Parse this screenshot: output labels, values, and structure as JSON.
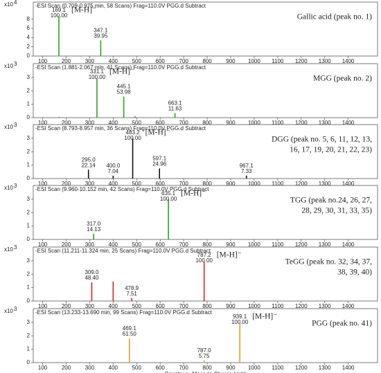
{
  "chart_data": [
    {
      "type": "stem",
      "header": "-ESI Scan (0.709-0.975 min, 58 Scans) Frag=110.0V PGG.d  Subtract",
      "y_multiplier": "x10",
      "y_exponent": "4",
      "compound": [
        "Gallic acid (peak no. 1)"
      ],
      "annotation": "[M-H]⁻",
      "color": "#22a822",
      "x": [
        169.1,
        347.1
      ],
      "x_labels": [
        "169.1",
        "347.1"
      ],
      "values": [
        8.6,
        3.4
      ],
      "rel_labels": [
        "100.00",
        "39.95"
      ],
      "xlim": [
        60,
        1525
      ],
      "xticks": [
        100,
        200,
        300,
        400,
        500,
        600,
        700,
        800,
        900,
        1000,
        1100,
        1200,
        1300,
        1400
      ],
      "ylim": [
        0,
        9.6
      ],
      "yticks": [
        0,
        2,
        4,
        6,
        8
      ]
    },
    {
      "type": "stem",
      "header": "-ESI Scan (1.881-2.067 min, 41 Scans) Frag=110.0V PGG.d  Subtract",
      "y_multiplier": "x10",
      "y_exponent": "3",
      "compound": [
        "MGG (peak no. 2)"
      ],
      "annotation": "[M-H]⁻",
      "color": "#22a822",
      "x": [
        169.0,
        331.1,
        445.1,
        493.0,
        663.1
      ],
      "x_labels": [
        null,
        "331.1",
        "445.1",
        null,
        "663.1"
      ],
      "values": [
        0.06,
        2.9,
        1.57,
        0.1,
        0.34
      ],
      "rel_labels": [
        null,
        "100.00",
        "53.98",
        null,
        "11.63"
      ],
      "xlim": [
        60,
        1525
      ],
      "xticks": [
        100,
        200,
        300,
        400,
        500,
        600,
        700,
        800,
        900,
        1000,
        1100,
        1200,
        1300,
        1400
      ],
      "ylim": [
        0,
        3.3
      ],
      "yticks": [
        0,
        1,
        2,
        3
      ]
    },
    {
      "type": "stem",
      "header": "-ESI Scan (8.793-8.957 min, 36 Scans) Frag=110.0V PGG.d  Subtract",
      "y_multiplier": "x10",
      "y_exponent": "3",
      "compound": [
        "DGG (peak no. 5, 6, 11, 12, 13,",
        "16, 17,  19, 20, 21, 22, 23)"
      ],
      "annotation": "[M-H]⁻",
      "color": "#111111",
      "x": [
        295.0,
        400.0,
        483.2,
        597.1,
        967.1
      ],
      "x_labels": [
        "295.0",
        "400.0",
        "483.2",
        "597.1",
        "967.1"
      ],
      "values": [
        0.66,
        0.21,
        3.0,
        0.75,
        0.22
      ],
      "rel_labels": [
        "22.14",
        "7.04",
        "100.00",
        "24.96",
        "7.33"
      ],
      "xlim": [
        60,
        1525
      ],
      "xticks": [
        100,
        200,
        300,
        400,
        500,
        600,
        700,
        800,
        900,
        1000,
        1100,
        1200,
        1300,
        1400
      ],
      "ylim": [
        0,
        3.3
      ],
      "yticks": [
        0,
        1,
        2,
        3
      ]
    },
    {
      "type": "stem",
      "header": "-ESI Scan (9.960-10.152 min, 42 Scans) Frag=110.0V PGG.d  Subtract",
      "y_multiplier": "x10",
      "y_exponent": "3",
      "compound": [
        "TGG (peak no.24,  26, 27,",
        "28, 29,  30, 31, 33,  35)"
      ],
      "annotation": "[M-H]⁻",
      "color": "#22a822",
      "x": [
        317.0,
        635.1
      ],
      "x_labels": [
        "317.0",
        "635.1"
      ],
      "values": [
        0.42,
        3.0
      ],
      "rel_labels": [
        "14.13",
        "100.00"
      ],
      "xlim": [
        60,
        1525
      ],
      "xticks": [
        100,
        200,
        300,
        400,
        500,
        600,
        700,
        800,
        900,
        1000,
        1100,
        1200,
        1300,
        1400
      ],
      "ylim": [
        0,
        3.3
      ],
      "yticks": [
        0,
        1,
        2,
        3
      ]
    },
    {
      "type": "stem",
      "header": "-ESI Scan (11.211-11.324 min, 25 Scans) Frag=110.0V PGG.d  Subtract",
      "y_multiplier": "x10",
      "y_exponent": "3",
      "compound": [
        "TeGG (peak no. 32, 34, 37,",
        "38, 39, 40)"
      ],
      "annotation": "[M-H]⁻",
      "color": "#dd2222",
      "x": [
        309.0,
        400.0,
        478.9,
        787.2
      ],
      "x_labels": [
        "309.0",
        null,
        "478.9",
        "787.2"
      ],
      "values": [
        1.4,
        1.45,
        0.22,
        2.9
      ],
      "rel_labels": [
        "48.40",
        null,
        "7.51",
        "100.00"
      ],
      "xlim": [
        60,
        1525
      ],
      "xticks": [
        100,
        200,
        300,
        400,
        500,
        600,
        700,
        800,
        900,
        1000,
        1100,
        1200,
        1300,
        1400
      ],
      "ylim": [
        0,
        3.3
      ],
      "yticks": [
        0,
        1,
        2,
        3
      ]
    },
    {
      "type": "stem",
      "header": "-ESI Scan (13.233-13.690 min, 99 Scans) Frag=110.0V PGG.d  Subtract",
      "y_multiplier": "x10",
      "y_exponent": "3",
      "compound": [
        "PGG (peak no. 41)"
      ],
      "annotation": "[M-H]⁻",
      "color": "#e89a1c",
      "x": [
        469.1,
        787.0,
        939.1
      ],
      "x_labels": [
        "469.1",
        "787.0",
        "939.1"
      ],
      "values": [
        1.8,
        0.17,
        2.9
      ],
      "rel_labels": [
        "61.50",
        "5.75",
        "100.00"
      ],
      "xlim": [
        60,
        1525
      ],
      "xticks": [
        100,
        200,
        300,
        400,
        500,
        600,
        700,
        800,
        900,
        1000,
        1100,
        1200,
        1300,
        1400
      ],
      "ylim": [
        0,
        3.3
      ],
      "yticks": [
        0,
        1,
        2,
        3
      ],
      "x_label": "Counts vs. Mass-to-Charge (m/z)"
    }
  ]
}
